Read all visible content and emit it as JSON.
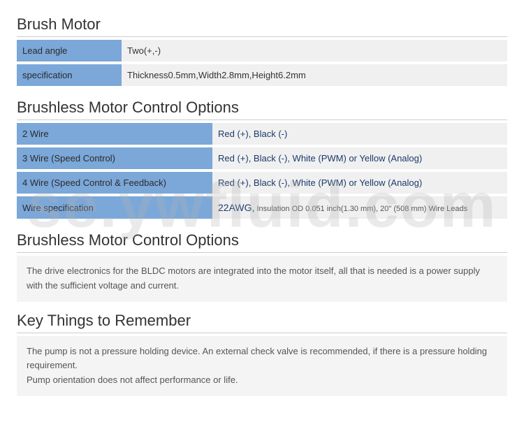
{
  "watermark": "se.ywfluid.com",
  "sections": {
    "brush_motor": {
      "title": "Brush Motor",
      "rows": [
        {
          "key": "Lead angle",
          "value": "Two(+,-)"
        },
        {
          "key": "specification",
          "value": "Thickness0.5mm,Width2.8mm,Height6.2mm"
        }
      ]
    },
    "brushless_options_table": {
      "title": "Brushless Motor Control Options",
      "rows": [
        {
          "key": "2 Wire",
          "value": "Red (+), Black (-)"
        },
        {
          "key": "3 Wire (Speed Control)",
          "value": "Red (+), Black (-), White (PWM) or Yellow (Analog)"
        },
        {
          "key": "4 Wire (Speed Control & Feedback)",
          "value": "Red (+), Black (-), White (PWM) or Yellow (Analog)"
        },
        {
          "key": "Wire specification",
          "value_awg": "22AWG,",
          "value_rest": " Insulation OD 0.051 inch(1.30 mm), 20\" (508 mm) Wire Leads"
        }
      ]
    },
    "brushless_options_note": {
      "title": "Brushless Motor Control Options",
      "text": "The drive electronics for the BLDC motors are integrated into the motor itself, all that is needed is a power supply with the sufficient voltage and current."
    },
    "key_things": {
      "title": "Key Things to Remember",
      "line1": "The pump is not a pressure holding device. An external check valve is recommended, if there is a pressure holding requirement.",
      "line2": "Pump orientation does not affect performance or life."
    }
  },
  "colors": {
    "key_bg": "#7ba7d9",
    "value_bg": "#f0f0f0",
    "note_bg": "#f4f4f4",
    "title_border": "#cccccc",
    "value_text": "#1b3a6b"
  }
}
